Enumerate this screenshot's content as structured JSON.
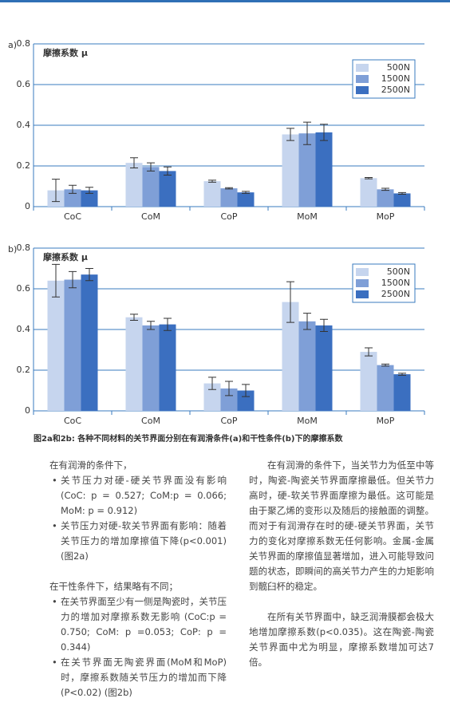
{
  "chart_data": [
    {
      "type": "bar",
      "panel": "a)",
      "ylabel": "摩擦系数 μ",
      "categories": [
        "CoC",
        "CoM",
        "CoP",
        "MoM",
        "MoP"
      ],
      "series": [
        {
          "name": "500N",
          "color": "#c6d5ee",
          "values": [
            0.08,
            0.215,
            0.125,
            0.355,
            0.14
          ],
          "errors": [
            0.055,
            0.025,
            0.005,
            0.03,
            0.003
          ]
        },
        {
          "name": "1500N",
          "color": "#7f9fd7",
          "values": [
            0.085,
            0.195,
            0.09,
            0.36,
            0.085
          ],
          "errors": [
            0.02,
            0.02,
            0.003,
            0.055,
            0.005
          ]
        },
        {
          "name": "2500N",
          "color": "#3b6fc0",
          "values": [
            0.08,
            0.175,
            0.07,
            0.365,
            0.065
          ],
          "errors": [
            0.015,
            0.02,
            0.005,
            0.04,
            0.004
          ]
        }
      ],
      "ylim": [
        0,
        0.8
      ],
      "yticks": [
        0,
        0.2,
        0.4,
        0.6,
        0.8
      ],
      "grid": true,
      "legend": "upper right"
    },
    {
      "type": "bar",
      "panel": "b)",
      "ylabel": "摩擦系数 μ",
      "categories": [
        "CoC",
        "CoM",
        "CoP",
        "MoM",
        "MoP"
      ],
      "series": [
        {
          "name": "500N",
          "color": "#c6d5ee",
          "values": [
            0.64,
            0.46,
            0.135,
            0.535,
            0.29
          ],
          "errors": [
            0.08,
            0.015,
            0.03,
            0.1,
            0.02
          ]
        },
        {
          "name": "1500N",
          "color": "#7f9fd7",
          "values": [
            0.645,
            0.42,
            0.11,
            0.44,
            0.225
          ],
          "errors": [
            0.04,
            0.02,
            0.035,
            0.04,
            0.005
          ]
        },
        {
          "name": "2500N",
          "color": "#3b6fc0",
          "values": [
            0.67,
            0.425,
            0.1,
            0.42,
            0.18
          ],
          "errors": [
            0.03,
            0.03,
            0.03,
            0.03,
            0.005
          ]
        }
      ],
      "ylim": [
        0,
        0.8
      ],
      "yticks": [
        0,
        0.2,
        0.4,
        0.6,
        0.8
      ],
      "grid": true,
      "legend": "upper right"
    }
  ],
  "caption": "图2a和2b: 各种不同材料的关节界面分别在有润滑条件(a)和干性条件(b)下的摩擦系数",
  "left_column": {
    "intro1": "在有润滑的条件下，",
    "bullets1": [
      "关节压力对硬-硬关节界面没有影响 (CoC: p = 0.527; CoM:p = 0.066; MoM: p = 0.912)",
      "关节压力对硬-软关节界面有影响：随着关节压力的增加摩擦值下降(p<0.001) (图2a)"
    ],
    "intro2": "在干性条件下，结果略有不同；",
    "bullets2": [
      "在关节界面至少有一侧是陶瓷时，关节压力的增加对摩擦系数无影响 (CoC:p = 0.750; CoM: p =0.053; CoP: p = 0.344)",
      "在关节界面无陶瓷界面(MoM和MoP)时，摩擦系数随关节压力的增加而下降(P<0.02) (图2b)"
    ]
  },
  "right_column": {
    "paragraphs": [
      "在有润滑的条件下，当关节力为低至中等时，陶瓷-陶瓷关节界面摩擦最低。但关节力高时，硬-软关节界面摩擦为最低。这可能是由于聚乙烯的变形以及随后的接触面的调整。而对于有润滑存在时的硬-硬关节界面，关节力的变化对摩擦系数无任何影响。金属-金属关节界面的摩擦值显著增加，进入可能导致问题的状态，即瞬间的高关节力产生的力矩影响到髋臼杯的稳定。",
      "在所有关节界面中，缺乏润滑膜都会极大地增加摩擦系数(p<0.035)。这在陶瓷-陶瓷关节界面中尤为明显，摩擦系数增加可达7倍。"
    ]
  }
}
